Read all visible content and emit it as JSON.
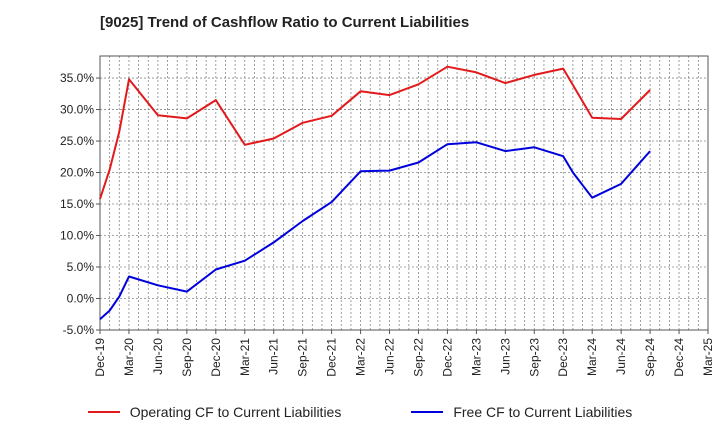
{
  "chart_data": {
    "type": "line",
    "title": "[9025]  Trend of Cashflow Ratio to Current Liabilities",
    "x": [
      "Dec-19",
      "Jan-20",
      "Feb-20",
      "Mar-20",
      "Jun-20",
      "Sep-20",
      "Dec-20",
      "Mar-21",
      "Jun-21",
      "Sep-21",
      "Dec-21",
      "Mar-22",
      "Jun-22",
      "Sep-22",
      "Dec-22",
      "Mar-23",
      "Jun-23",
      "Sep-23",
      "Dec-23",
      "Jan-24",
      "Mar-24",
      "Jun-24",
      "Sep-24"
    ],
    "series": [
      {
        "name": "Operating CF to Current Liabilities",
        "color": "#e31a1c",
        "values": [
          15.8,
          20.5,
          26.5,
          34.8,
          29.1,
          28.6,
          31.5,
          24.4,
          25.4,
          27.9,
          29.0,
          32.9,
          32.3,
          34.0,
          36.8,
          35.9,
          34.2,
          35.5,
          36.5,
          33.9,
          28.7,
          28.5,
          33.1
        ]
      },
      {
        "name": "Free CF to Current Liabilities",
        "color": "#0000dd",
        "values": [
          -3.3,
          -1.9,
          0.3,
          3.5,
          2.1,
          1.1,
          4.6,
          6.0,
          8.9,
          12.3,
          15.3,
          20.2,
          20.3,
          21.6,
          24.5,
          24.8,
          23.4,
          24.0,
          22.6,
          20.0,
          16.0,
          18.2,
          23.4
        ]
      }
    ],
    "x_tick_labels": [
      "Dec-19",
      "Mar-20",
      "Jun-20",
      "Sep-20",
      "Dec-20",
      "Mar-21",
      "Jun-21",
      "Sep-21",
      "Dec-21",
      "Mar-22",
      "Jun-22",
      "Sep-22",
      "Dec-22",
      "Mar-23",
      "Jun-23",
      "Sep-23",
      "Dec-23",
      "Mar-24",
      "Jun-24",
      "Sep-24",
      "Dec-24",
      "Mar-25"
    ],
    "y_tick_labels": [
      "35.0%",
      "30.0%",
      "25.0%",
      "20.0%",
      "15.0%",
      "10.0%",
      "5.0%",
      "0.0%",
      "-5.0%"
    ],
    "y_ticks": [
      35,
      30,
      25,
      20,
      15,
      10,
      5,
      0,
      -5
    ],
    "ylim": [
      -5,
      38.5
    ],
    "xlabel": "",
    "ylabel": "",
    "grid": true,
    "legend_position": "bottom"
  }
}
